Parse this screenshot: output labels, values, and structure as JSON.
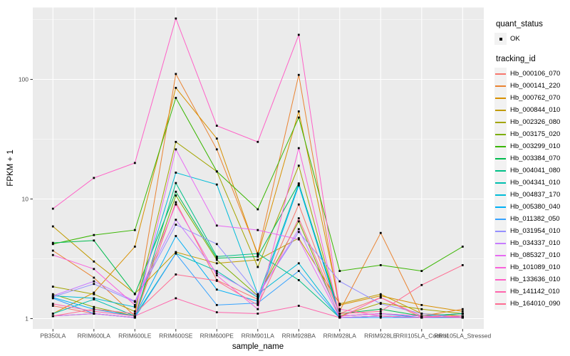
{
  "figure": {
    "xlabel": "sample_name",
    "ylabel": "FPKM + 1"
  },
  "legend": {
    "quant_title": "quant_status",
    "quant_items": [
      {
        "label": "OK"
      }
    ],
    "tracking_title": "tracking_id"
  },
  "chart_data": {
    "type": "line",
    "title": "",
    "xlabel": "sample_name",
    "ylabel": "FPKM + 1",
    "y_scale": "log10",
    "y_ticks": [
      1,
      10,
      100
    ],
    "ylim": [
      0.82,
      400
    ],
    "grid": true,
    "legend_position": "right",
    "marker": "black-square",
    "quant_status": "OK",
    "panel_bg": "#EBEBEB",
    "grid_color": "#FFFFFF",
    "tick_color": "#333333",
    "tick_label_color": "#4D4D4D",
    "categories": [
      "PB350LA",
      "RRIM600LA",
      "RRIM600LE",
      "RRIM600SE",
      "RRIM600PE",
      "RRIM901LA",
      "RRIM928BA",
      "RRIM928LA",
      "RRIM928LE",
      "RRII105LA_Control",
      "RRII105LA_Stressed"
    ],
    "series": [
      {
        "name": "Hb_000106_070",
        "color": "#F8766D",
        "values": [
          1.28,
          1.1,
          1.02,
          9.4,
          2.1,
          1.45,
          9.0,
          1.1,
          1.5,
          1.02,
          1.1
        ]
      },
      {
        "name": "Hb_000141_220",
        "color": "#EA8331",
        "values": [
          3.7,
          2.2,
          1.05,
          111,
          26,
          3.5,
          109,
          1.16,
          5.2,
          1.05,
          1.2
        ]
      },
      {
        "name": "Hb_000762_070",
        "color": "#D89000",
        "values": [
          1.1,
          1.65,
          4.0,
          85,
          32,
          3.4,
          54,
          1.3,
          1.55,
          1.3,
          1.15
        ]
      },
      {
        "name": "Hb_000844_010",
        "color": "#C09B00",
        "values": [
          5.9,
          3.0,
          1.62,
          3.6,
          2.9,
          3.1,
          4.7,
          1.33,
          1.6,
          1.1,
          1.05
        ]
      },
      {
        "name": "Hb_002326_080",
        "color": "#A3A500",
        "values": [
          1.85,
          1.6,
          1.15,
          30,
          17,
          2.7,
          19,
          1.05,
          1.35,
          1.2,
          1.1
        ]
      },
      {
        "name": "Hb_003175_020",
        "color": "#7CAE00",
        "values": [
          1.6,
          1.25,
          1.05,
          10.7,
          3.1,
          1.55,
          6.5,
          1.02,
          1.05,
          1.02,
          1.05
        ]
      },
      {
        "name": "Hb_003299_010",
        "color": "#39B600",
        "values": [
          4.2,
          5.0,
          5.5,
          70,
          17,
          8.2,
          48,
          2.5,
          2.8,
          2.5,
          4.0
        ]
      },
      {
        "name": "Hb_003384_070",
        "color": "#00BB4E",
        "values": [
          4.3,
          4.5,
          1.6,
          11.5,
          3.2,
          3.3,
          13.5,
          1.1,
          1.2,
          1.05,
          1.1
        ]
      },
      {
        "name": "Hb_004041_080",
        "color": "#00C087",
        "values": [
          1.05,
          1.1,
          1.02,
          13.6,
          3.3,
          3.5,
          2.1,
          1.02,
          1.05,
          1.02,
          1.02
        ]
      },
      {
        "name": "Hb_004341_010",
        "color": "#00C0AF",
        "values": [
          1.1,
          1.45,
          1.05,
          3.5,
          2.5,
          1.5,
          13.4,
          1.05,
          1.1,
          1.05,
          1.1
        ]
      },
      {
        "name": "Hb_004837_170",
        "color": "#00BCD8",
        "values": [
          1.55,
          1.48,
          1.25,
          16.6,
          13.2,
          1.6,
          2.9,
          1.02,
          1.05,
          1.02,
          1.05
        ]
      },
      {
        "name": "Hb_005380_040",
        "color": "#00B0F6",
        "values": [
          1.5,
          1.2,
          1.05,
          4.9,
          1.75,
          1.4,
          13.0,
          1.05,
          1.1,
          1.02,
          1.05
        ]
      },
      {
        "name": "Hb_011382_050",
        "color": "#35A2FF",
        "values": [
          1.48,
          1.1,
          1.02,
          3.5,
          1.3,
          1.35,
          2.5,
          1.02,
          1.02,
          1.02,
          1.02
        ]
      },
      {
        "name": "Hb_031954_010",
        "color": "#9590FF",
        "values": [
          1.52,
          1.95,
          1.38,
          6.1,
          4.2,
          1.6,
          5.3,
          2.05,
          1.33,
          1.1,
          1.02
        ]
      },
      {
        "name": "Hb_034337_010",
        "color": "#C77CFF",
        "values": [
          1.55,
          2.05,
          1.4,
          6.7,
          2.4,
          1.55,
          5.6,
          1.05,
          1.1,
          1.05,
          1.02
        ]
      },
      {
        "name": "Hb_085327_010",
        "color": "#E76BF3",
        "values": [
          1.05,
          1.1,
          1.02,
          26,
          6.0,
          5.5,
          4.6,
          1.02,
          1.05,
          1.02,
          1.05
        ]
      },
      {
        "name": "Hb_101089_010",
        "color": "#FA62DB",
        "values": [
          3.4,
          2.6,
          1.3,
          9.0,
          2.3,
          1.2,
          26.6,
          1.05,
          1.1,
          1.05,
          1.02
        ]
      },
      {
        "name": "Hb_133636_010",
        "color": "#FF61C7",
        "values": [
          8.3,
          15.0,
          20,
          323,
          41,
          30,
          236,
          1.2,
          1.05,
          1.02,
          1.05
        ]
      },
      {
        "name": "Hb_141142_010",
        "color": "#FF65AC",
        "values": [
          1.33,
          1.15,
          1.05,
          1.48,
          1.13,
          1.1,
          1.28,
          1.02,
          1.5,
          1.05,
          1.02
        ]
      },
      {
        "name": "Hb_164010_090",
        "color": "#FF6C92",
        "values": [
          1.05,
          1.2,
          1.1,
          2.34,
          2.07,
          1.3,
          6.9,
          1.1,
          1.15,
          1.91,
          2.8
        ]
      }
    ]
  }
}
